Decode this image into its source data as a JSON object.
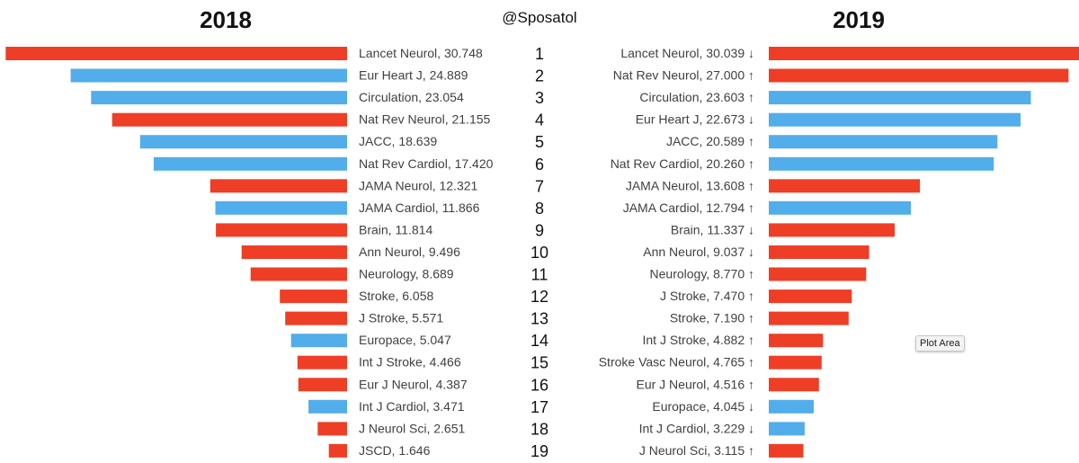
{
  "title_left": "2018",
  "title_right": "2019",
  "handle": "@Sposatol",
  "tooltip": "Plot Area",
  "colors": {
    "neuro": "#EE3E25",
    "cardio": "#52ADEB"
  },
  "chart_data": [
    {
      "type": "bar",
      "title": "2018",
      "orientation": "horizontal",
      "direction": "right-to-left",
      "xlim": [
        0,
        31
      ],
      "ranks": [
        "1",
        "2",
        "3",
        "4",
        "5",
        "6",
        "7",
        "8",
        "9",
        "10",
        "11",
        "12",
        "13",
        "14",
        "15",
        "16",
        "17",
        "18",
        "19"
      ],
      "bars": [
        {
          "label": "Lancet Neurol, 30.748",
          "value": 30.748,
          "color": "#EE3E25"
        },
        {
          "label": "Eur Heart J, 24.889",
          "value": 24.889,
          "color": "#52ADEB"
        },
        {
          "label": "Circulation, 23.054",
          "value": 23.054,
          "color": "#52ADEB"
        },
        {
          "label": "Nat Rev Neurol, 21.155",
          "value": 21.155,
          "color": "#EE3E25"
        },
        {
          "label": "JACC, 18.639",
          "value": 18.639,
          "color": "#52ADEB"
        },
        {
          "label": "Nat Rev Cardiol, 17.420",
          "value": 17.42,
          "color": "#52ADEB"
        },
        {
          "label": "JAMA Neurol, 12.321",
          "value": 12.321,
          "color": "#EE3E25"
        },
        {
          "label": "JAMA Cardiol, 11.866",
          "value": 11.866,
          "color": "#52ADEB"
        },
        {
          "label": "Brain, 11.814",
          "value": 11.814,
          "color": "#EE3E25"
        },
        {
          "label": "Ann Neurol, 9.496",
          "value": 9.496,
          "color": "#EE3E25"
        },
        {
          "label": "Neurology, 8.689",
          "value": 8.689,
          "color": "#EE3E25"
        },
        {
          "label": "Stroke, 6.058",
          "value": 6.058,
          "color": "#EE3E25"
        },
        {
          "label": "J Stroke, 5.571",
          "value": 5.571,
          "color": "#EE3E25"
        },
        {
          "label": "Europace, 5.047",
          "value": 5.047,
          "color": "#52ADEB"
        },
        {
          "label": "Int J Stroke, 4.466",
          "value": 4.466,
          "color": "#EE3E25"
        },
        {
          "label": "Eur J Neurol, 4.387",
          "value": 4.387,
          "color": "#EE3E25"
        },
        {
          "label": "Int J Cardiol, 3.471",
          "value": 3.471,
          "color": "#52ADEB"
        },
        {
          "label": "J Neurol Sci, 2.651",
          "value": 2.651,
          "color": "#EE3E25"
        },
        {
          "label": "JSCD, 1.646",
          "value": 1.646,
          "color": "#EE3E25"
        }
      ]
    },
    {
      "type": "bar",
      "title": "2019",
      "orientation": "horizontal",
      "direction": "left-to-right",
      "xlim": [
        0,
        31
      ],
      "bars": [
        {
          "label": "Lancet Neurol, 30.039 ↓",
          "value": 30.039,
          "color": "#EE3E25"
        },
        {
          "label": "Nat Rev Neurol, 27.000 ↑",
          "value": 27.0,
          "color": "#EE3E25"
        },
        {
          "label": "Circulation, 23.603 ↑",
          "value": 23.603,
          "color": "#52ADEB"
        },
        {
          "label": "Eur Heart J, 22.673 ↓",
          "value": 22.673,
          "color": "#52ADEB"
        },
        {
          "label": "JACC, 20.589 ↑",
          "value": 20.589,
          "color": "#52ADEB"
        },
        {
          "label": "Nat Rev Cardiol, 20.260 ↑",
          "value": 20.26,
          "color": "#52ADEB"
        },
        {
          "label": "JAMA Neurol, 13.608 ↑",
          "value": 13.608,
          "color": "#EE3E25"
        },
        {
          "label": "JAMA Cardiol, 12.794 ↑",
          "value": 12.794,
          "color": "#52ADEB"
        },
        {
          "label": "Brain, 11.337 ↓",
          "value": 11.337,
          "color": "#EE3E25"
        },
        {
          "label": "Ann Neurol, 9.037 ↓",
          "value": 9.037,
          "color": "#EE3E25"
        },
        {
          "label": "Neurology, 8.770 ↑",
          "value": 8.77,
          "color": "#EE3E25"
        },
        {
          "label": "J Stroke, 7.470 ↑",
          "value": 7.47,
          "color": "#EE3E25"
        },
        {
          "label": "Stroke, 7.190 ↑",
          "value": 7.19,
          "color": "#EE3E25"
        },
        {
          "label": "Int J Stroke, 4.882 ↑",
          "value": 4.882,
          "color": "#EE3E25"
        },
        {
          "label": "Stroke Vasc Neurol, 4.765 ↑",
          "value": 4.765,
          "color": "#EE3E25"
        },
        {
          "label": "Eur J Neurol, 4.516 ↑",
          "value": 4.516,
          "color": "#EE3E25"
        },
        {
          "label": "Europace, 4.045 ↓",
          "value": 4.045,
          "color": "#52ADEB"
        },
        {
          "label": "Int J Cardiol, 3.229 ↓",
          "value": 3.229,
          "color": "#52ADEB"
        },
        {
          "label": "J Neurol Sci, 3.115 ↑",
          "value": 3.115,
          "color": "#EE3E25"
        }
      ]
    }
  ]
}
